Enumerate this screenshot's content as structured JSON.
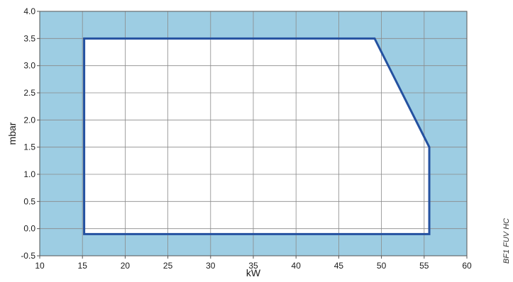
{
  "chart_data": {
    "type": "area",
    "title": "",
    "xlabel": "kW",
    "ylabel": "mbar",
    "xlim": [
      10,
      60
    ],
    "ylim": [
      -0.5,
      4.0
    ],
    "x_ticks": [
      10,
      15,
      20,
      25,
      30,
      35,
      40,
      45,
      50,
      55,
      60
    ],
    "y_ticks": [
      -0.5,
      0.0,
      0.5,
      1.0,
      1.5,
      2.0,
      2.5,
      3.0,
      3.5,
      4.0
    ],
    "y_tick_labels": [
      "-0.5",
      "0.0",
      "0.5",
      "1.0",
      "1.5",
      "2.0",
      "2.5",
      "3.0",
      "3.5",
      "4.0"
    ],
    "grid": true,
    "series": [
      {
        "x": [
          15.2,
          49.2,
          55.6,
          55.6,
          15.2
        ],
        "y": [
          3.5,
          3.5,
          1.5,
          -0.1,
          -0.1
        ],
        "closed": true
      }
    ],
    "colors": {
      "background_fill": "#9dcde3",
      "region_fill": "#ffffff",
      "outline": "#2451a0",
      "grid": "#8a8a8a"
    },
    "side_label": "BF1 FUV HC"
  }
}
